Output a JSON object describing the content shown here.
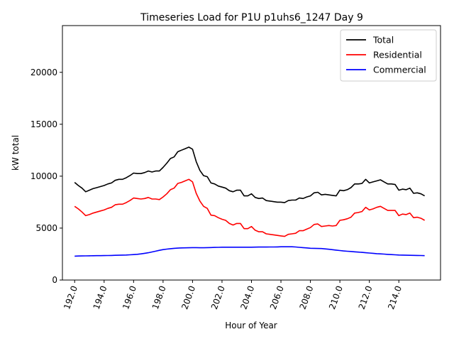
{
  "chart_data": {
    "type": "line",
    "title": "Timeseries Load for P1U p1uhs6_1247  Day 9",
    "xlabel": "Hour of Year",
    "ylabel": "kW total",
    "xlim": [
      191.17,
      216.83
    ],
    "ylim": [
      0,
      24500
    ],
    "xticks": [
      192,
      194,
      196,
      198,
      200,
      202,
      204,
      206,
      208,
      210,
      212,
      214
    ],
    "xtick_labels": [
      "192.0",
      "194.0",
      "196.0",
      "198.0",
      "200.0",
      "202.0",
      "204.0",
      "206.0",
      "208.0",
      "210.0",
      "212.0",
      "214.0"
    ],
    "yticks": [
      0,
      5000,
      10000,
      15000,
      20000
    ],
    "ytick_labels": [
      "0",
      "5000",
      "10000",
      "15000",
      "20000"
    ],
    "legend_position": "top-right",
    "x": [
      192.0,
      192.25,
      192.5,
      192.75,
      193.0,
      193.25,
      193.5,
      193.75,
      194.0,
      194.25,
      194.5,
      194.75,
      195.0,
      195.25,
      195.5,
      195.75,
      196.0,
      196.25,
      196.5,
      196.75,
      197.0,
      197.25,
      197.5,
      197.75,
      198.0,
      198.25,
      198.5,
      198.75,
      199.0,
      199.25,
      199.5,
      199.75,
      200.0,
      200.25,
      200.5,
      200.75,
      201.0,
      201.25,
      201.5,
      201.75,
      202.0,
      202.25,
      202.5,
      202.75,
      203.0,
      203.25,
      203.5,
      203.75,
      204.0,
      204.25,
      204.5,
      204.75,
      205.0,
      205.25,
      205.5,
      205.75,
      206.0,
      206.25,
      206.5,
      206.75,
      207.0,
      207.25,
      207.5,
      207.75,
      208.0,
      208.25,
      208.5,
      208.75,
      209.0,
      209.25,
      209.5,
      209.75,
      210.0,
      210.25,
      210.5,
      210.75,
      211.0,
      211.25,
      211.5,
      211.75,
      212.0,
      212.25,
      212.5,
      212.75,
      213.0,
      213.25,
      213.5,
      213.75,
      214.0,
      214.25,
      214.5,
      214.75,
      215.0,
      215.25,
      215.5,
      215.75
    ],
    "series": [
      {
        "name": "Total",
        "color": "#000000",
        "values": [
          9400,
          9100,
          8850,
          8500,
          8650,
          8800,
          8900,
          9000,
          9100,
          9250,
          9350,
          9600,
          9700,
          9700,
          9850,
          10050,
          10300,
          10250,
          10250,
          10350,
          10500,
          10400,
          10500,
          10500,
          10850,
          11250,
          11700,
          11850,
          12350,
          12500,
          12650,
          12800,
          12600,
          11400,
          10550,
          10050,
          9950,
          9350,
          9250,
          9050,
          8950,
          8850,
          8600,
          8500,
          8650,
          8650,
          8100,
          8100,
          8300,
          7950,
          7850,
          7900,
          7650,
          7600,
          7550,
          7500,
          7500,
          7450,
          7650,
          7700,
          7700,
          7900,
          7850,
          8000,
          8100,
          8400,
          8450,
          8200,
          8250,
          8200,
          8150,
          8100,
          8650,
          8600,
          8700,
          8900,
          9250,
          9250,
          9300,
          9700,
          9350,
          9450,
          9550,
          9650,
          9450,
          9250,
          9250,
          9200,
          8650,
          8750,
          8700,
          8850,
          8350,
          8400,
          8300,
          8100
        ]
      },
      {
        "name": "Residential",
        "color": "#ff0000",
        "values": [
          7100,
          6850,
          6550,
          6200,
          6300,
          6450,
          6550,
          6650,
          6750,
          6900,
          7000,
          7250,
          7300,
          7300,
          7450,
          7650,
          7900,
          7850,
          7800,
          7850,
          7950,
          7800,
          7800,
          7750,
          8000,
          8300,
          8700,
          8850,
          9300,
          9400,
          9550,
          9700,
          9450,
          8350,
          7600,
          7100,
          6900,
          6250,
          6200,
          6000,
          5850,
          5750,
          5450,
          5300,
          5450,
          5450,
          4950,
          4950,
          5150,
          4800,
          4650,
          4650,
          4450,
          4400,
          4350,
          4300,
          4250,
          4200,
          4400,
          4450,
          4500,
          4750,
          4750,
          4900,
          5050,
          5350,
          5400,
          5150,
          5200,
          5250,
          5200,
          5250,
          5750,
          5800,
          5900,
          6050,
          6450,
          6500,
          6600,
          7000,
          6750,
          6850,
          7000,
          7100,
          6900,
          6700,
          6700,
          6700,
          6200,
          6350,
          6300,
          6450,
          6000,
          6050,
          5950,
          5750
        ]
      },
      {
        "name": "Commercial",
        "color": "#0000ff",
        "values": [
          2300,
          2310,
          2320,
          2330,
          2335,
          2340,
          2345,
          2350,
          2355,
          2360,
          2370,
          2380,
          2390,
          2400,
          2410,
          2430,
          2450,
          2480,
          2520,
          2570,
          2630,
          2700,
          2780,
          2860,
          2930,
          2980,
          3020,
          3050,
          3070,
          3090,
          3100,
          3110,
          3120,
          3120,
          3110,
          3110,
          3120,
          3130,
          3140,
          3150,
          3160,
          3160,
          3165,
          3165,
          3165,
          3165,
          3165,
          3165,
          3165,
          3170,
          3175,
          3175,
          3175,
          3180,
          3185,
          3190,
          3200,
          3205,
          3205,
          3200,
          3180,
          3150,
          3120,
          3090,
          3060,
          3050,
          3040,
          3030,
          3000,
          2960,
          2920,
          2880,
          2840,
          2800,
          2770,
          2750,
          2720,
          2690,
          2660,
          2630,
          2600,
          2570,
          2540,
          2520,
          2500,
          2470,
          2450,
          2430,
          2410,
          2400,
          2390,
          2380,
          2375,
          2370,
          2360,
          2350
        ]
      }
    ]
  }
}
